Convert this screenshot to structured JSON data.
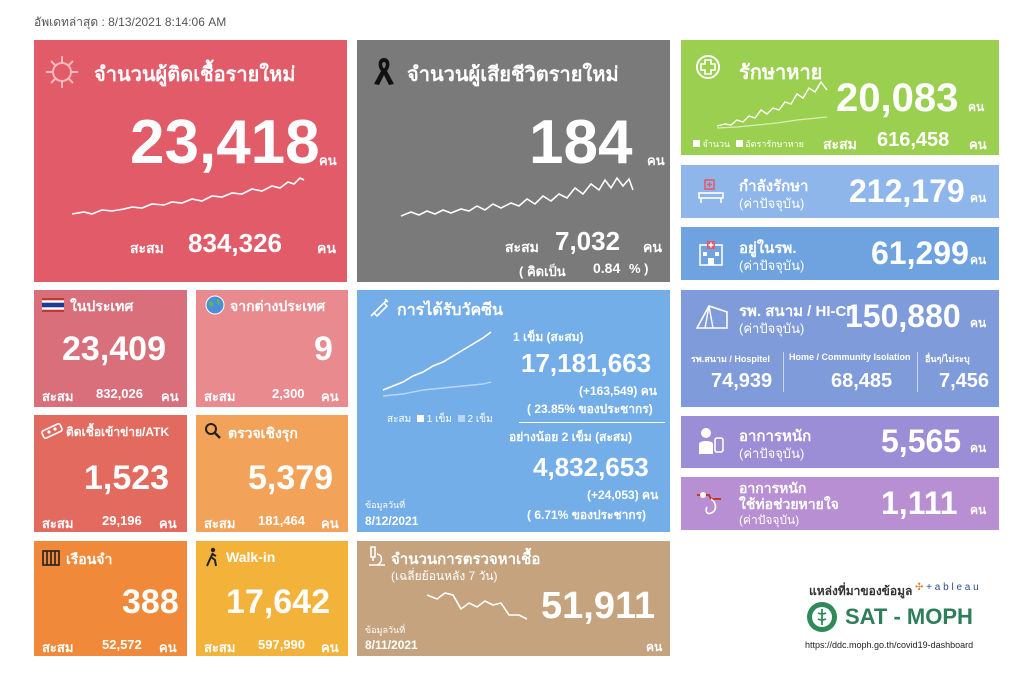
{
  "updated": "อัพเดทล่าสุด : 8/13/2021 8:14:06 AM",
  "colors": {
    "new_cases": "#e15c68",
    "deaths": "#7a7a7a",
    "recovered": "#9bcf4f",
    "treating": "#8fb6ea",
    "hospital": "#6fa3e0",
    "field": "#7f9bd9",
    "severe": "#9b8ed6",
    "ventilator": "#b88fd2",
    "domestic": "#d86f7a",
    "abroad": "#e98a8f",
    "atk": "#e36a5f",
    "proactive": "#f3a25a",
    "prison": "#f08a3a",
    "walkin": "#f3b23a",
    "vaccine": "#74aee8",
    "testing": "#c4a37e"
  },
  "new_cases": {
    "title": "จำนวนผู้ติดเชื้อรายใหม่",
    "value": "23,418",
    "unit": "คน",
    "cum_label": "สะสม",
    "cum_value": "834,326",
    "cum_unit": "คน",
    "icon": "virus-icon"
  },
  "deaths": {
    "title": "จำนวนผู้เสียชีวิตรายใหม่",
    "value": "184",
    "unit": "คน",
    "cum_label": "สะสม",
    "cum_value": "7,032",
    "cum_unit": "คน",
    "pct_open": "( คิดเป็น",
    "pct_value": "0.84",
    "pct_close": "% )",
    "icon": "ribbon-icon"
  },
  "recovered": {
    "title": "รักษาหาย",
    "value": "20,083",
    "unit": "คน",
    "legend_count": "จำนวน",
    "legend_rate": "อัตรารักษาหาย",
    "cum_label": "สะสม",
    "cum_value": "616,458",
    "cum_unit": "คน",
    "icon": "plus-circle-icon"
  },
  "treating": {
    "title": "กำลังรักษา",
    "sub": "(ค่าปัจจุบัน)",
    "value": "212,179",
    "unit": "คน",
    "icon": "bed-icon"
  },
  "hospital": {
    "title": "อยู่ในรพ.",
    "sub": "(ค่าปัจจุบัน)",
    "value": "61,299",
    "unit": "คน",
    "icon": "hospital-icon"
  },
  "field": {
    "title": "รพ. สนาม / HI-CI",
    "sub": "(ค่าปัจจุบัน)",
    "value": "150,880",
    "unit": "คน",
    "icon": "tent-icon",
    "cols": [
      {
        "label": "รพ.สนาม / Hospitel",
        "value": "74,939"
      },
      {
        "label": "Home / Community Isolation",
        "value": "68,485"
      },
      {
        "label": "อื่นๆ/ไม่ระบุ",
        "value": "7,456"
      }
    ]
  },
  "severe": {
    "title": "อาการหนัก",
    "sub": "(ค่าปัจจุบัน)",
    "value": "5,565",
    "unit": "คน",
    "icon": "patient-icon"
  },
  "ventilator": {
    "title1": "อาการหนัก",
    "title2": "ใช้ท่อช่วยหายใจ",
    "sub": "(ค่าปัจจุบัน)",
    "value": "1,111",
    "unit": "คน",
    "icon": "ventilator-icon"
  },
  "domestic": {
    "title": "ในประเทศ",
    "value": "23,409",
    "cum_label": "สะสม",
    "cum_value": "832,026",
    "cum_unit": "คน",
    "icon": "thai-flag-icon"
  },
  "abroad": {
    "title": "จากต่างประเทศ",
    "value": "9",
    "cum_label": "สะสม",
    "cum_value": "2,300",
    "cum_unit": "คน",
    "icon": "globe-icon"
  },
  "atk": {
    "title": "ติดเชื้อเข้าข่าย/ATK",
    "value": "1,523",
    "cum_label": "สะสม",
    "cum_value": "29,196",
    "cum_unit": "คน",
    "icon": "test-kit-icon"
  },
  "proactive": {
    "title": "ตรวจเชิงรุก",
    "value": "5,379",
    "cum_label": "สะสม",
    "cum_value": "181,464",
    "cum_unit": "คน",
    "icon": "magnifier-icon"
  },
  "prison": {
    "title": "เรือนจำ",
    "value": "388",
    "cum_label": "สะสม",
    "cum_value": "52,572",
    "cum_unit": "คน",
    "icon": "prison-icon"
  },
  "walkin": {
    "title": "Walk-in",
    "value": "17,642",
    "cum_label": "สะสม",
    "cum_value": "597,990",
    "cum_unit": "คน",
    "icon": "walking-icon"
  },
  "vaccine": {
    "title": "การได้รับวัคซีน",
    "icon": "syringe-icon",
    "dose1_label": "1 เข็ม (สะสม)",
    "dose1_value": "17,181,663",
    "dose1_delta": "(+163,549) คน",
    "dose1_pct": "( 23.85% ของประชากร)",
    "dose2_label": "อย่างน้อย 2 เข็ม (สะสม)",
    "dose2_value": "4,832,653",
    "dose2_delta": "(+24,053) คน",
    "dose2_pct": "(  6.71% ของประชากร)",
    "legend_cum": "สะสม",
    "legend_d1": "1 เข็ม",
    "legend_d2": "2 เข็ม",
    "date_label": "ข้อมูลวันที่",
    "date": "8/12/2021"
  },
  "testing": {
    "title": "จำนวนการตรวจหาเชื้อ",
    "sub": "(เฉลี่ยย้อนหลัง 7 วัน)",
    "value": "51,911",
    "unit": "คน",
    "date_label": "ข้อมูลวันที่",
    "date": "8/11/2021",
    "icon": "microscope-icon"
  },
  "source": {
    "label": "แหล่งที่มาของข้อมูล",
    "tableau": "+ a b l e a u",
    "org": "SAT - MOPH",
    "url": "https://ddc.moph.go.th/covid19-dashboard"
  }
}
